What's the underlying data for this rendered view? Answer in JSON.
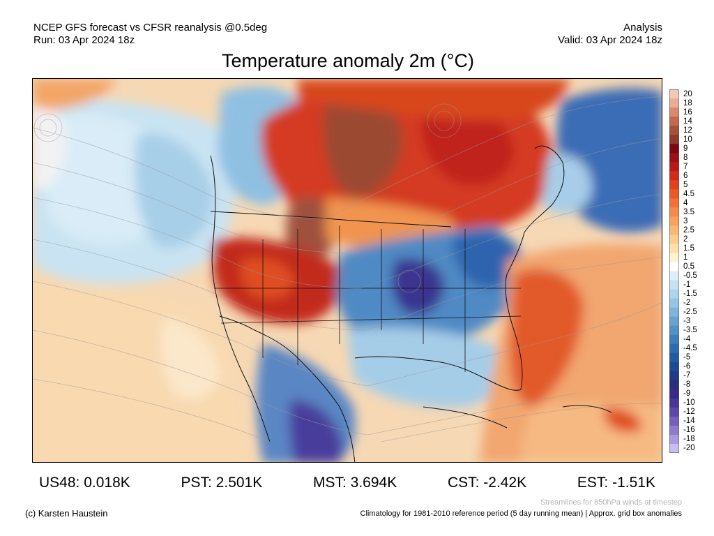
{
  "header": {
    "left_line1": "NCEP GFS forecast vs CFSR reanalysis @0.5deg",
    "left_line2": "Run: 03 Apr 2024 18z",
    "right_line1": "Analysis",
    "right_line2": "Valid: 03 Apr 2024 18z"
  },
  "title": "Temperature anomaly 2m (°C)",
  "colorbar": {
    "labels": [
      "20",
      "18",
      "16",
      "14",
      "12",
      "10",
      "9",
      "8",
      "7",
      "6",
      "5",
      "4.5",
      "4",
      "3.5",
      "3",
      "2.5",
      "2",
      "1.5",
      "1",
      "0.5",
      "-0.5",
      "-1",
      "-1.5",
      "-2",
      "-2.5",
      "-3",
      "-3.5",
      "-4",
      "-4.5",
      "-5",
      "-6",
      "-7",
      "-8",
      "-9",
      "-10",
      "-12",
      "-14",
      "-16",
      "-18",
      "-20"
    ],
    "colors": [
      "#f2c9b8",
      "#e8ad95",
      "#d88a6c",
      "#c06b4d",
      "#a4513a",
      "#8b3a2b",
      "#7a0a10",
      "#9a1014",
      "#b81a18",
      "#d42a1c",
      "#e2401e",
      "#ea5a26",
      "#f07236",
      "#f48a48",
      "#f7a25c",
      "#f9b874",
      "#fbcd8e",
      "#fde0aa",
      "#fef2d0",
      "#ffffff",
      "#ddeef8",
      "#c6e2f2",
      "#aed4ec",
      "#96c6e4",
      "#7fb5da",
      "#68a3d0",
      "#5291c6",
      "#3f7ebc",
      "#2f6bb0",
      "#245aa2",
      "#1e4a93",
      "#213b86",
      "#2a2f7c",
      "#3a2a86",
      "#4a3594",
      "#5d47a8",
      "#7460bc",
      "#8d7ccc",
      "#a99cdc",
      "#c7bfee"
    ]
  },
  "stats": [
    {
      "label": "US48: 0.018K"
    },
    {
      "label": "PST: 2.501K"
    },
    {
      "label": "MST: 3.694K"
    },
    {
      "label": "CST: -2.42K"
    },
    {
      "label": "EST: -1.51K"
    }
  ],
  "notes": {
    "streamlines": "Streamlines for 850hPa winds at timestep",
    "climatology": "Climatology for 1981-2010 reference period (5 day running mean) | Approx. grid box anomalies",
    "copyright": "(c) Karsten Haustein"
  }
}
